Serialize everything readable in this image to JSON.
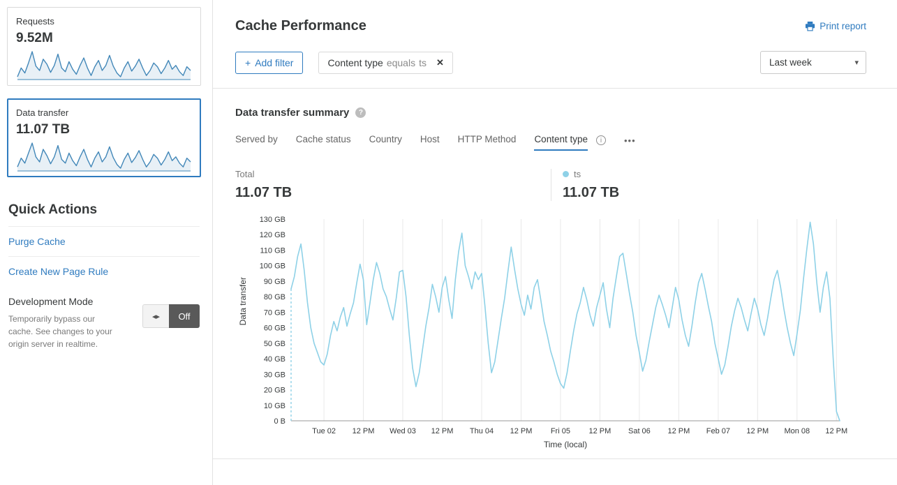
{
  "colors": {
    "accent_blue": "#2f7bbf",
    "series_blue": "#8ed1e7",
    "sparkline_blue": "#4287b8",
    "text_dark": "#36393a",
    "text_gray": "#797979",
    "toggle_dark": "#595959"
  },
  "sidebar": {
    "cards": [
      {
        "label": "Requests",
        "value": "9.52M",
        "selected": false,
        "sparkline": [
          38,
          52,
          44,
          60,
          78,
          55,
          48,
          66,
          58,
          45,
          56,
          74,
          52,
          46,
          62,
          50,
          42,
          56,
          68,
          52,
          40,
          54,
          64,
          48,
          56,
          72,
          55,
          44,
          38,
          52,
          62,
          47,
          55,
          66,
          52,
          40,
          48,
          60,
          54,
          43,
          52,
          64,
          50,
          56,
          46,
          40,
          54,
          48
        ]
      },
      {
        "label": "Data transfer",
        "value": "11.07 TB",
        "selected": true,
        "sparkline": [
          42,
          56,
          48,
          64,
          80,
          58,
          50,
          70,
          60,
          47,
          58,
          76,
          54,
          48,
          64,
          52,
          44,
          58,
          70,
          54,
          42,
          56,
          66,
          50,
          58,
          74,
          57,
          46,
          40,
          54,
          64,
          49,
          57,
          68,
          54,
          42,
          50,
          62,
          56,
          45,
          54,
          66,
          52,
          58,
          48,
          42,
          56,
          50
        ]
      }
    ],
    "quick_actions": {
      "title": "Quick Actions",
      "links": [
        "Purge Cache",
        "Create New Page Rule"
      ],
      "dev_mode": {
        "title": "Development Mode",
        "description": "Temporarily bypass our cache. See changes to your origin server in realtime.",
        "toggle_arrows_icon": "◂▸",
        "toggle_label": "Off"
      }
    }
  },
  "header": {
    "title": "Cache Performance",
    "print_label": "Print report"
  },
  "filters": {
    "plus": "+",
    "add_label": "Add filter",
    "chip": {
      "field": "Content type",
      "operator": "equals",
      "value": "ts",
      "remove_icon": "✕"
    },
    "range_value": "Last week",
    "caret_icon": "▾"
  },
  "summary": {
    "title": "Data transfer summary",
    "help_icon": "?",
    "tabs": [
      {
        "label": "Served by",
        "active": false
      },
      {
        "label": "Cache status",
        "active": false
      },
      {
        "label": "Country",
        "active": false
      },
      {
        "label": "Host",
        "active": false
      },
      {
        "label": "HTTP Method",
        "active": false
      },
      {
        "label": "Content type",
        "active": true
      }
    ],
    "info_icon": "i",
    "more_icon": "•••",
    "total_label": "Total",
    "total_value": "11.07 TB",
    "legend": {
      "name": "ts",
      "value": "11.07 TB"
    }
  },
  "chart_data": {
    "type": "line",
    "title": "Data transfer summary",
    "xlabel": "Time (local)",
    "ylabel": "Data transfer",
    "unit": "GB",
    "ylim": [
      0,
      130
    ],
    "y_tick_step": 10,
    "y_tick_labels": [
      "0 B",
      "10 GB",
      "20 GB",
      "30 GB",
      "40 GB",
      "50 GB",
      "60 GB",
      "70 GB",
      "80 GB",
      "90 GB",
      "100 GB",
      "110 GB",
      "120 GB",
      "130 GB"
    ],
    "grid": "vertical",
    "legend_position": "top",
    "x_ticks": [
      {
        "index": 10,
        "label": "Tue 02"
      },
      {
        "index": 22,
        "label": "12 PM"
      },
      {
        "index": 34,
        "label": "Wed 03"
      },
      {
        "index": 46,
        "label": "12 PM"
      },
      {
        "index": 58,
        "label": "Thu 04"
      },
      {
        "index": 70,
        "label": "12 PM"
      },
      {
        "index": 82,
        "label": "Fri 05"
      },
      {
        "index": 94,
        "label": "12 PM"
      },
      {
        "index": 106,
        "label": "Sat 06"
      },
      {
        "index": 118,
        "label": "12 PM"
      },
      {
        "index": 130,
        "label": "Feb 07"
      },
      {
        "index": 142,
        "label": "12 PM"
      },
      {
        "index": 154,
        "label": "Mon 08"
      },
      {
        "index": 166,
        "label": "12 PM"
      }
    ],
    "series": [
      {
        "name": "ts",
        "color": "#8ed1e7",
        "values": [
          85,
          93,
          106,
          114,
          97,
          76,
          60,
          50,
          44,
          38,
          36,
          43,
          55,
          64,
          58,
          67,
          73,
          61,
          69,
          76,
          89,
          101,
          91,
          62,
          76,
          91,
          102,
          95,
          85,
          80,
          72,
          65,
          79,
          96,
          97,
          80,
          55,
          34,
          22,
          31,
          46,
          61,
          73,
          88,
          80,
          70,
          86,
          93,
          78,
          66,
          91,
          109,
          121,
          100,
          93,
          85,
          96,
          91,
          95,
          74,
          50,
          31,
          38,
          52,
          66,
          79,
          96,
          112,
          98,
          85,
          75,
          68,
          81,
          72,
          86,
          91,
          78,
          64,
          55,
          45,
          38,
          30,
          24,
          21,
          31,
          45,
          58,
          69,
          76,
          86,
          78,
          68,
          61,
          73,
          81,
          89,
          72,
          60,
          79,
          93,
          106,
          108,
          95,
          82,
          70,
          55,
          44,
          32,
          39,
          51,
          62,
          73,
          81,
          75,
          68,
          60,
          73,
          86,
          78,
          65,
          55,
          48,
          61,
          76,
          89,
          95,
          85,
          74,
          64,
          50,
          40,
          30,
          36,
          48,
          61,
          71,
          79,
          73,
          65,
          58,
          69,
          79,
          72,
          62,
          55,
          66,
          79,
          91,
          97,
          86,
          72,
          60,
          50,
          42,
          56,
          71,
          92,
          111,
          128,
          114,
          89,
          70,
          86,
          96,
          79,
          40,
          6,
          0
        ]
      }
    ]
  }
}
